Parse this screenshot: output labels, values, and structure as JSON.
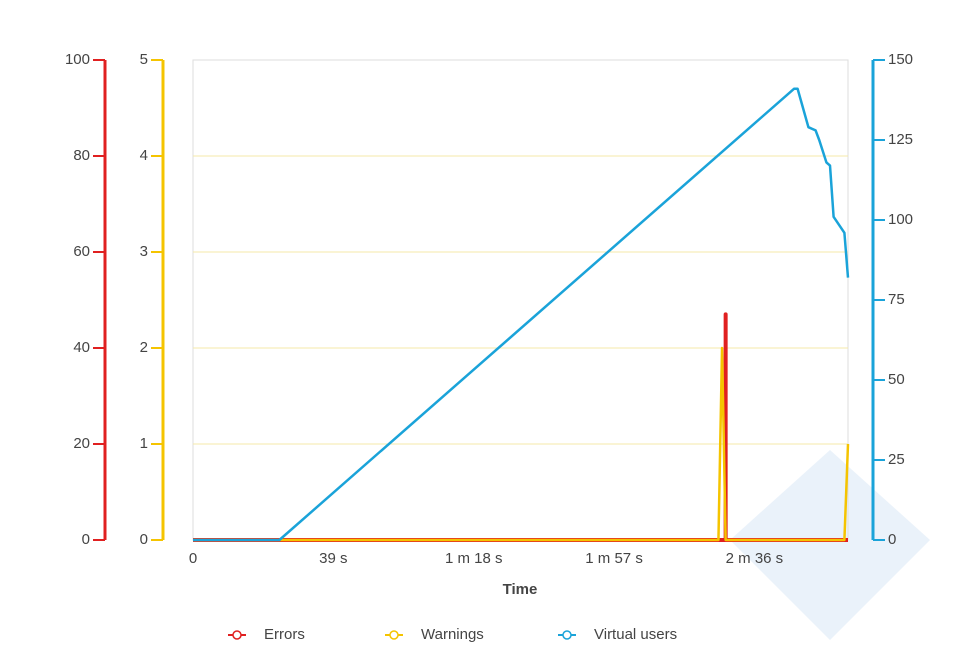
{
  "chart_data": {
    "type": "line",
    "x_label": "Time",
    "xlim": [
      0,
      182
    ],
    "xticks": [
      0,
      {
        "value": 39,
        "label": "39 s"
      },
      {
        "value": 78,
        "label": "1 m 18 s"
      },
      {
        "value": 117,
        "label": "1 m 57 s"
      },
      {
        "value": 156,
        "label": "2 m 36 s"
      }
    ],
    "ylim": [
      0,
      100
    ],
    "yticks": [
      0,
      20,
      40,
      60,
      80,
      100
    ],
    "y_color": "#e02020",
    "y3lim": [
      0,
      5
    ],
    "y3ticks": [
      0,
      1,
      2,
      3,
      4,
      5
    ],
    "y3_color": "#f5c400",
    "y2lim": [
      0,
      150
    ],
    "y2ticks": [
      0,
      25,
      50,
      75,
      100,
      125,
      150
    ],
    "y2_color": "#1aa3d9",
    "grid": true,
    "grid_axis": "y3",
    "legend": "bottom",
    "series": [
      {
        "name": "Errors",
        "color": "#e02020",
        "axis": "y",
        "x": [
          0,
          148,
          148,
          148,
          182
        ],
        "values": [
          0,
          0,
          47,
          0,
          0
        ]
      },
      {
        "name": "Warnings",
        "color": "#f5c400",
        "axis": "y3",
        "x": [
          0,
          146,
          147,
          148,
          181,
          182
        ],
        "values": [
          0,
          0,
          2,
          0,
          0,
          1
        ]
      },
      {
        "name": "Virtual users",
        "color": "#1aa3d9",
        "axis": "y2",
        "x": [
          0,
          24,
          167,
          168,
          169,
          171,
          173,
          174,
          176,
          177,
          178,
          181,
          182
        ],
        "values": [
          0,
          0,
          141,
          141,
          137,
          129,
          128,
          125,
          118,
          117,
          101,
          96,
          82
        ]
      }
    ]
  }
}
